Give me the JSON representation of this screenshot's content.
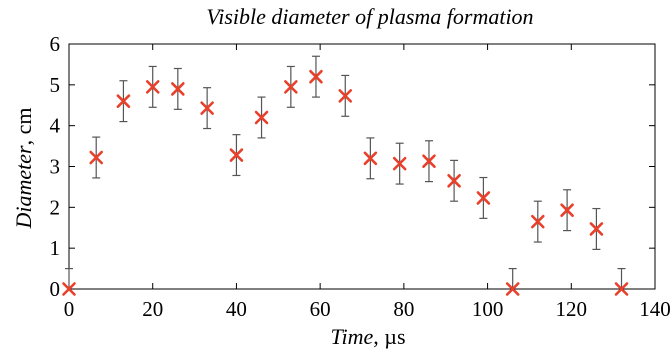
{
  "chart_data": {
    "type": "scatter",
    "title": "Visible diameter of plasma formation",
    "xlabel_main": "Time",
    "xlabel_unit": ", µs",
    "ylabel_main": "Diameter",
    "ylabel_unit": ", cm",
    "xlim": [
      0,
      140
    ],
    "ylim": [
      0,
      6
    ],
    "xticks": [
      0,
      20,
      40,
      60,
      80,
      100,
      120,
      140
    ],
    "yticks": [
      0,
      1,
      2,
      3,
      4,
      5,
      6
    ],
    "grid": false,
    "marker": "x",
    "marker_color": "#e8402a",
    "errorbar_color": "#555555",
    "points": [
      {
        "x": 0,
        "y": 0.0,
        "err": 0.5
      },
      {
        "x": 6.5,
        "y": 3.22,
        "err": 0.5
      },
      {
        "x": 13,
        "y": 4.6,
        "err": 0.5
      },
      {
        "x": 20,
        "y": 4.95,
        "err": 0.5
      },
      {
        "x": 26,
        "y": 4.9,
        "err": 0.5
      },
      {
        "x": 33,
        "y": 4.43,
        "err": 0.5
      },
      {
        "x": 40,
        "y": 3.28,
        "err": 0.5
      },
      {
        "x": 46,
        "y": 4.2,
        "err": 0.5
      },
      {
        "x": 53,
        "y": 4.95,
        "err": 0.5
      },
      {
        "x": 59,
        "y": 5.2,
        "err": 0.5
      },
      {
        "x": 66,
        "y": 4.73,
        "err": 0.5
      },
      {
        "x": 72,
        "y": 3.2,
        "err": 0.5
      },
      {
        "x": 79,
        "y": 3.07,
        "err": 0.5
      },
      {
        "x": 86,
        "y": 3.13,
        "err": 0.5
      },
      {
        "x": 92,
        "y": 2.65,
        "err": 0.5
      },
      {
        "x": 99,
        "y": 2.23,
        "err": 0.5
      },
      {
        "x": 106,
        "y": 0.0,
        "err": 0.5
      },
      {
        "x": 112,
        "y": 1.65,
        "err": 0.5
      },
      {
        "x": 119,
        "y": 1.93,
        "err": 0.5
      },
      {
        "x": 126,
        "y": 1.47,
        "err": 0.5
      },
      {
        "x": 132,
        "y": 0.0,
        "err": 0.5
      }
    ]
  }
}
